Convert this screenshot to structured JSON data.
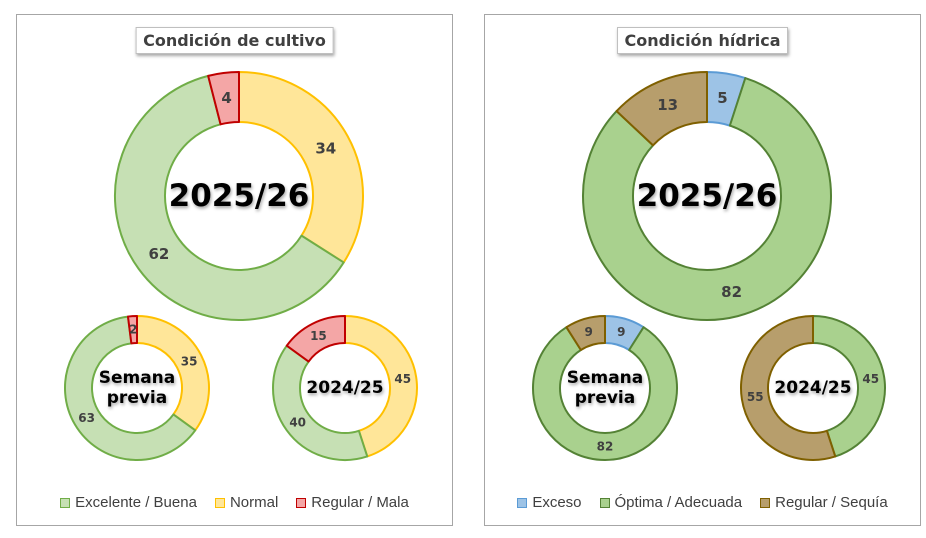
{
  "chart_data": [
    {
      "type": "donut",
      "title": "Condición de cultivo",
      "legend_position": "bottom",
      "legend": [
        {
          "name": "Excelente / Buena",
          "fill": "#c6e0b4",
          "stroke": "#70ad47"
        },
        {
          "name": "Normal",
          "fill": "#ffe699",
          "stroke": "#ffc000"
        },
        {
          "name": "Regular / Mala",
          "fill": "#f4a6a6",
          "stroke": "#c00000"
        }
      ],
      "rings": [
        {
          "label": "2025/26",
          "values": [
            62,
            34,
            4
          ]
        },
        {
          "label": "Semana previa",
          "values": [
            63,
            35,
            2
          ]
        },
        {
          "label": "2024/25",
          "values": [
            40,
            45,
            15
          ]
        }
      ]
    },
    {
      "type": "donut",
      "title": "Condición hídrica",
      "legend_position": "bottom",
      "legend": [
        {
          "name": "Exceso",
          "fill": "#9dc3e6",
          "stroke": "#5b9bd5"
        },
        {
          "name": "Óptima / Adecuada",
          "fill": "#a9d18e",
          "stroke": "#548235"
        },
        {
          "name": "Regular / Sequía",
          "fill": "#b79e6c",
          "stroke": "#7f6000"
        }
      ],
      "rings": [
        {
          "label": "2025/26",
          "values": [
            5,
            82,
            13
          ]
        },
        {
          "label": "Semana previa",
          "values": [
            9,
            82,
            9
          ]
        },
        {
          "label": "2024/25",
          "values": [
            0,
            45,
            55
          ]
        }
      ]
    }
  ]
}
